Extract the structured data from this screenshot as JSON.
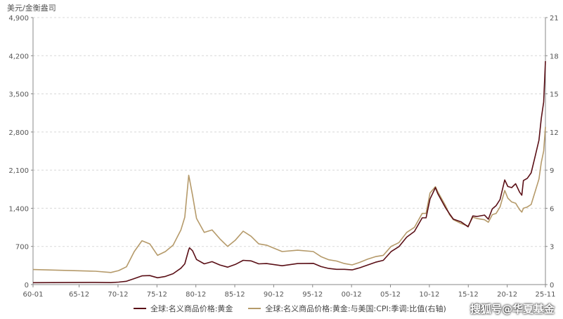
{
  "unit_label": "美元/金衡盎司",
  "watermark": "搜狐号@华夏基金",
  "colors": {
    "series_nominal": "#5a0f16",
    "series_real": "#b59a6a",
    "grid": "#d8d8d8",
    "axis": "#888888"
  },
  "chart_data": {
    "type": "line",
    "title": "",
    "x_tick_labels": [
      "60-01",
      "65-12",
      "70-12",
      "75-12",
      "80-12",
      "85-12",
      "90-12",
      "95-12",
      "00-12",
      "05-12",
      "10-12",
      "15-12",
      "20-12",
      "25-11"
    ],
    "x_tick_years": [
      1960.0,
      1965.92,
      1970.92,
      1975.92,
      1980.92,
      1985.92,
      1990.92,
      1995.92,
      2000.92,
      2005.92,
      2010.92,
      2015.92,
      2020.92,
      2025.83
    ],
    "x_range": [
      1960.0,
      2025.83
    ],
    "y_left": {
      "ticks": [
        "0",
        "700",
        "1,400",
        "2,100",
        "2,800",
        "3,500",
        "4,200",
        "4,900"
      ],
      "range": [
        0,
        4900
      ]
    },
    "y_right": {
      "ticks": [
        "0",
        "3",
        "6",
        "9",
        "12",
        "15",
        "18",
        "21"
      ],
      "range": [
        0,
        21
      ]
    },
    "grid": true,
    "legend_position": "bottom",
    "series": [
      {
        "name": "全球:名义商品价格:黄金",
        "axis": "left",
        "x": [
          1960,
          1968,
          1970,
          1971,
          1972,
          1973,
          1974,
          1975,
          1976,
          1977,
          1978,
          1979,
          1979.5,
          1980.0,
          1980.1,
          1980.5,
          1981,
          1982,
          1983,
          1984,
          1985,
          1986,
          1987,
          1988,
          1989,
          1990,
          1992,
          1994,
          1996,
          1997,
          1998,
          1999,
          2000,
          2001,
          2002,
          2003,
          2004,
          2005,
          2006,
          2007,
          2008,
          2009,
          2010,
          2010.5,
          2011,
          2011.7,
          2012,
          2013,
          2013.5,
          2014,
          2015,
          2015.9,
          2016.5,
          2017,
          2018,
          2018.5,
          2019,
          2019.5,
          2020,
          2020.6,
          2021,
          2021.5,
          2022,
          2022.5,
          2022.8,
          2023,
          2023.5,
          2024,
          2024.5,
          2025,
          2025.3,
          2025.6,
          2025.83
        ],
        "y": [
          35,
          40,
          36,
          45,
          60,
          110,
          160,
          165,
          125,
          150,
          200,
          300,
          380,
          640,
          675,
          620,
          460,
          380,
          420,
          360,
          320,
          370,
          445,
          435,
          380,
          385,
          345,
          385,
          390,
          330,
          295,
          280,
          280,
          270,
          310,
          360,
          410,
          445,
          605,
          695,
          870,
          975,
          1225,
          1225,
          1570,
          1780,
          1670,
          1410,
          1300,
          1200,
          1150,
          1060,
          1260,
          1250,
          1275,
          1200,
          1390,
          1450,
          1560,
          1920,
          1800,
          1780,
          1850,
          1700,
          1640,
          1910,
          1950,
          2050,
          2350,
          2650,
          3050,
          3350,
          4100
        ]
      },
      {
        "name": "全球:名义商品价格:黄金:与美国:CPI:季调:比值(右轴)",
        "axis": "right",
        "x": [
          1960,
          1968,
          1970,
          1971,
          1972,
          1973,
          1974,
          1975,
          1976,
          1977,
          1978,
          1979,
          1979.5,
          1980.0,
          1980.1,
          1980.5,
          1981,
          1982,
          1983,
          1984,
          1985,
          1986,
          1987,
          1988,
          1989,
          1990,
          1992,
          1994,
          1996,
          1997,
          1998,
          1999,
          2000,
          2001,
          2002,
          2003,
          2004,
          2005,
          2006,
          2007,
          2008,
          2009,
          2010,
          2010.5,
          2011,
          2011.7,
          2012,
          2013,
          2013.5,
          2014,
          2015,
          2015.9,
          2016.5,
          2017,
          2018,
          2018.5,
          2019,
          2019.5,
          2020,
          2020.6,
          2021,
          2021.5,
          2022,
          2022.5,
          2022.8,
          2023,
          2023.5,
          2024,
          2024.5,
          2025,
          2025.3,
          2025.6,
          2025.83
        ],
        "y": [
          1.18,
          1.05,
          0.95,
          1.1,
          1.4,
          2.6,
          3.45,
          3.2,
          2.3,
          2.6,
          3.1,
          4.3,
          5.3,
          8.6,
          8.3,
          7.0,
          5.2,
          4.1,
          4.3,
          3.6,
          3.0,
          3.5,
          4.2,
          3.8,
          3.2,
          3.1,
          2.6,
          2.7,
          2.6,
          2.2,
          1.95,
          1.85,
          1.65,
          1.55,
          1.75,
          2.0,
          2.2,
          2.3,
          3.0,
          3.3,
          4.1,
          4.5,
          5.6,
          5.6,
          7.2,
          7.7,
          7.3,
          6.2,
          5.5,
          5.1,
          4.8,
          4.6,
          5.3,
          5.2,
          5.1,
          4.9,
          5.5,
          5.6,
          6.1,
          7.4,
          6.8,
          6.5,
          6.4,
          5.9,
          5.7,
          6.0,
          6.1,
          6.3,
          7.3,
          8.3,
          9.6,
          10.5,
          12.4
        ]
      }
    ]
  }
}
